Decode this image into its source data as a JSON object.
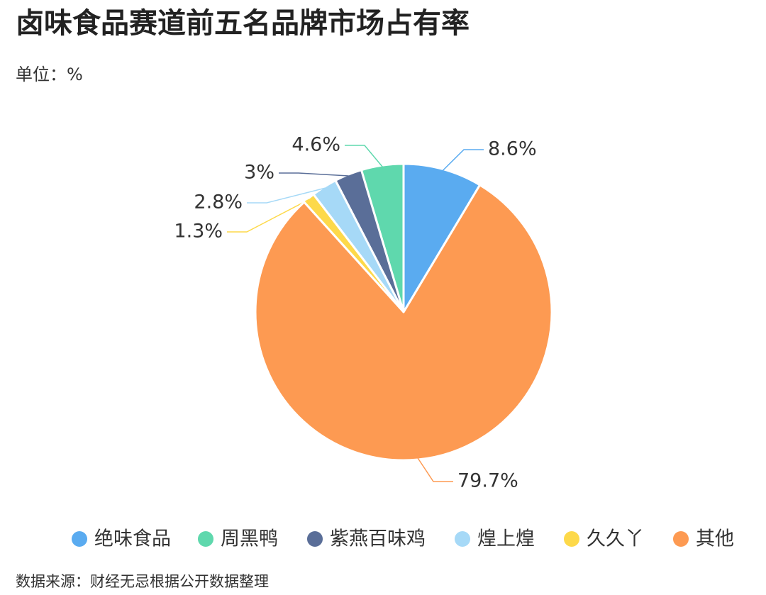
{
  "chart_data": {
    "type": "pie",
    "title": "卤味食品赛道前五名品牌市场占有率",
    "unit": "单位：%",
    "categories": [
      "绝味食品",
      "周黑鸭",
      "紫燕百味鸡",
      "煌上煌",
      "久久丫",
      "其他"
    ],
    "values": [
      8.6,
      4.6,
      3,
      2.8,
      1.3,
      79.7
    ],
    "value_labels": [
      "8.6%",
      "4.6%",
      "3%",
      "2.8%",
      "1.3%",
      "79.7%"
    ],
    "colors": [
      "#5aabf0",
      "#5fd8ad",
      "#5a6e98",
      "#a6d9f7",
      "#fdd94a",
      "#fd9a52"
    ],
    "source": "数据来源：财经无忌根据公开数据整理"
  }
}
